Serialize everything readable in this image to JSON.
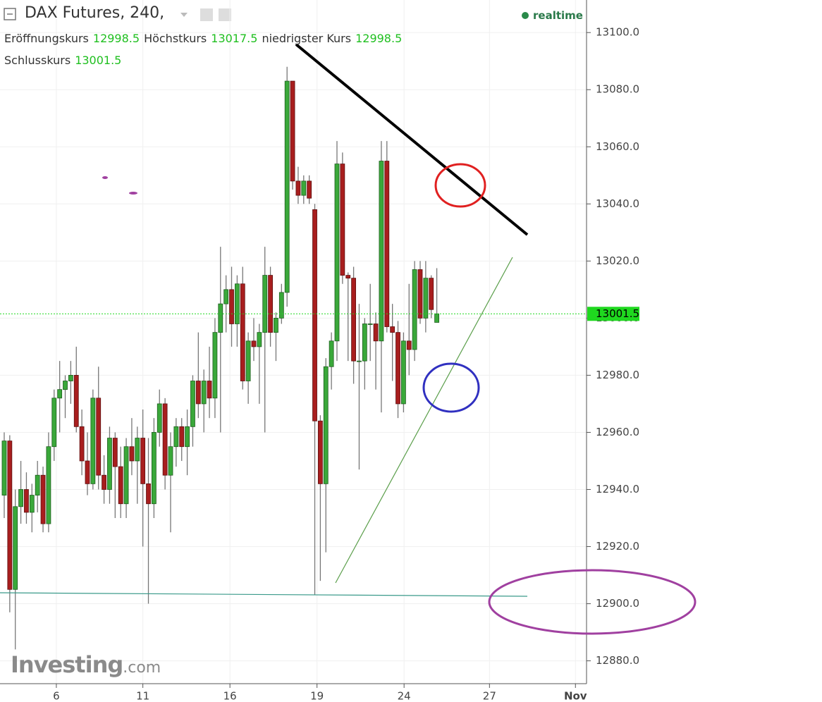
{
  "chart_data": {
    "type": "candlestick",
    "title": "DAX Futures, 240,",
    "status": "realtime",
    "ohlc_legend": [
      {
        "label": "Eröffnungskurs",
        "value": 12998.5
      },
      {
        "label": "Höchstkurs",
        "value": 13017.5
      },
      {
        "label": "niedrigster Kurs",
        "value": 12998.5
      },
      {
        "label": "Schlusskurs",
        "value": 13001.5
      }
    ],
    "watermark": "Investing",
    "watermark_suffix": ".com",
    "x": [
      0,
      1,
      2,
      3,
      4,
      5,
      6,
      7,
      8,
      9,
      10,
      11,
      12,
      13,
      14,
      15,
      16,
      17,
      18,
      19,
      20,
      21,
      22,
      23,
      24,
      25,
      26,
      27,
      28,
      29,
      30,
      31,
      32,
      33,
      34,
      35,
      36,
      37,
      38,
      39,
      40,
      41,
      42,
      43,
      44,
      45,
      46,
      47,
      48,
      49,
      50,
      51,
      52,
      53,
      54,
      55,
      56,
      57,
      58,
      59,
      60,
      61,
      62,
      63,
      64,
      65,
      66,
      67,
      68,
      69,
      70,
      71,
      72,
      73,
      74,
      75,
      76,
      77,
      78
    ],
    "open": [
      12938,
      12957,
      12905,
      12934,
      12940,
      12932,
      12938,
      12945,
      12928,
      12955,
      12972,
      12975,
      12978,
      12980,
      12962,
      12950,
      12942,
      12972,
      12945,
      12940,
      12958,
      12948,
      12935,
      12955,
      12950,
      12958,
      12942,
      12935,
      12960,
      12970,
      12945,
      12955,
      12962,
      12955,
      12962,
      12978,
      12970,
      12978,
      12972,
      12995,
      13005,
      13010,
      12998,
      13012,
      12978,
      12992,
      12990,
      12995,
      13015,
      12995,
      13000,
      13009,
      13083,
      13048,
      13043,
      13048,
      13038,
      12964,
      12942,
      12983,
      12992,
      13054,
      13015,
      13014,
      12985,
      12985,
      12998,
      12998,
      12992,
      13055,
      12997,
      12995,
      12970,
      12992,
      12989,
      13017,
      13000,
      13014,
      12998.5
    ],
    "high": [
      12960,
      12959,
      12940,
      12950,
      12946,
      12942,
      12950,
      12948,
      12960,
      12975,
      12985,
      12980,
      12985,
      12990,
      12968,
      12960,
      12975,
      12983,
      12952,
      12962,
      12960,
      12955,
      12958,
      12965,
      12962,
      12968,
      12958,
      12965,
      12975,
      12972,
      12960,
      12965,
      12965,
      12968,
      12980,
      12995,
      12982,
      12990,
      13000,
      13025,
      13015,
      13018,
      13015,
      13018,
      12995,
      13000,
      12998,
      13025,
      13018,
      13002,
      13012,
      13088,
      13083,
      13053,
      13050,
      13050,
      13040,
      12966,
      12986,
      12995,
      13062,
      13058,
      13016,
      13018,
      13005,
      13000,
      13012,
      13002,
      13062,
      13062,
      13005,
      12999,
      12995,
      13012,
      13020,
      13020,
      13020,
      13015,
      13017.5
    ],
    "low": [
      12930,
      12897,
      12884,
      12928,
      12928,
      12925,
      12932,
      12925,
      12925,
      12950,
      12960,
      12965,
      12970,
      12960,
      12945,
      12938,
      12940,
      12940,
      12935,
      12935,
      12930,
      12930,
      12930,
      12945,
      12935,
      12920,
      12900,
      12930,
      12955,
      12940,
      12925,
      12948,
      12950,
      12945,
      12955,
      12965,
      12960,
      12965,
      12965,
      12960,
      12995,
      12990,
      12990,
      12975,
      12970,
      12985,
      12970,
      12960,
      12990,
      12985,
      12998,
      13004,
      13045,
      13040,
      13040,
      13040,
      12903,
      12908,
      12918,
      12975,
      12985,
      13012,
      12985,
      12977,
      12947,
      12975,
      12985,
      12975,
      12967,
      12995,
      12978,
      12965,
      12967,
      12980,
      12985,
      12998,
      12995,
      13000,
      12998.5
    ],
    "close": [
      12957,
      12905,
      12934,
      12940,
      12932,
      12938,
      12945,
      12928,
      12955,
      12972,
      12975,
      12978,
      12980,
      12962,
      12950,
      12942,
      12972,
      12945,
      12940,
      12958,
      12948,
      12935,
      12955,
      12950,
      12958,
      12942,
      12935,
      12960,
      12970,
      12945,
      12955,
      12962,
      12955,
      12962,
      12978,
      12970,
      12978,
      12972,
      12995,
      13005,
      13010,
      12998,
      13012,
      12978,
      12992,
      12990,
      12995,
      13015,
      12995,
      13000,
      13009,
      13083,
      13048,
      13043,
      13048,
      13042,
      12964,
      12942,
      12983,
      12992,
      13054,
      13015,
      13014,
      12985,
      12985,
      12998,
      12998,
      12992,
      13055,
      12997,
      12995,
      12970,
      12992,
      12989,
      13017,
      13000,
      13014,
      13003,
      13001.5
    ],
    "up_color": "#3aa83a",
    "down_color": "#a81e1e",
    "last_color": "#1fd81f",
    "xlim": [
      -0.76,
      105.0
    ],
    "xticks": [
      {
        "value": 9.4,
        "label": "6"
      },
      {
        "value": 25.0,
        "label": "11"
      },
      {
        "value": 40.7,
        "label": "16"
      },
      {
        "value": 56.4,
        "label": "19"
      },
      {
        "value": 72.1,
        "label": "24"
      },
      {
        "value": 87.5,
        "label": "27"
      },
      {
        "value": 103.0,
        "label": "Nov"
      }
    ],
    "ylim": [
      12872,
      13111.4
    ],
    "yticks": [
      {
        "value": 12880,
        "label": "12880.0"
      },
      {
        "value": 12900,
        "label": "12900.0"
      },
      {
        "value": 12920,
        "label": "12920.0"
      },
      {
        "value": 12940,
        "label": "12940.0"
      },
      {
        "value": 12960,
        "label": "12960.0"
      },
      {
        "value": 12980,
        "label": "12980.0"
      },
      {
        "value": 13000,
        "label": "13000.0"
      },
      {
        "value": 13020,
        "label": "13020.0"
      },
      {
        "value": 13040,
        "label": "13040.0"
      },
      {
        "value": 13060,
        "label": "13060.0"
      },
      {
        "value": 13080,
        "label": "13080.0"
      },
      {
        "value": 13100,
        "label": "13100.0"
      }
    ],
    "grid": true
  }
}
